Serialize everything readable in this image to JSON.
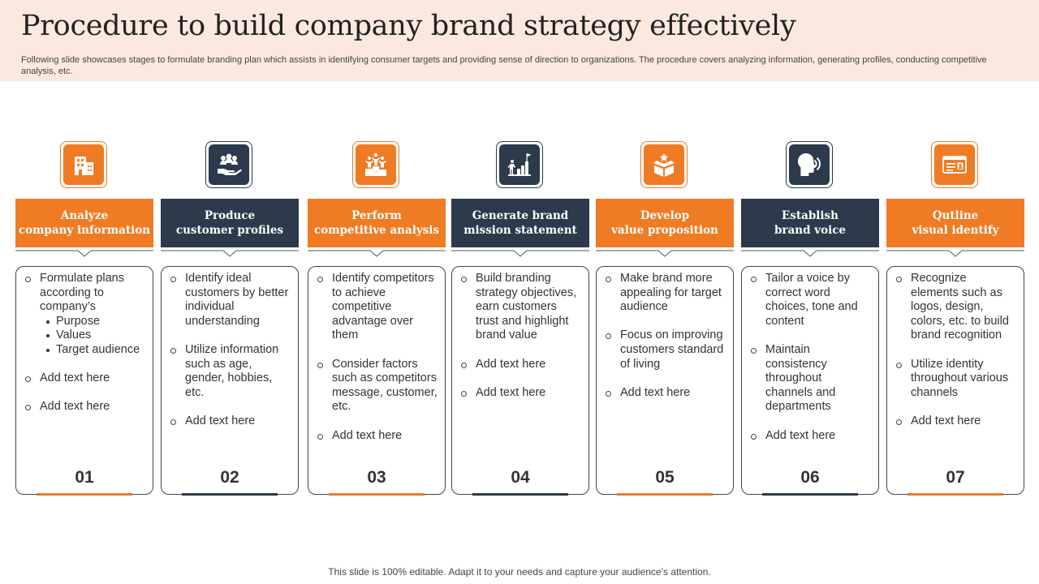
{
  "header": {
    "title": "Procedure to build company brand strategy effectively",
    "subtitle": "Following slide showcases stages to formulate branding plan which assists in identifying consumer targets and providing sense of direction to organizations. The procedure covers analyzing information, generating profiles, conducting competitive analysis, etc."
  },
  "colors": {
    "orange": "#ef7b25",
    "navy": "#2c3a4b"
  },
  "steps": [
    {
      "icon": "building-icon",
      "label": [
        "Analyze",
        "company information"
      ],
      "items": [
        {
          "text": "Formulate plans according to company’s",
          "sub": [
            "Purpose",
            "Values",
            "Target audience"
          ]
        },
        {
          "text": "Add text here"
        },
        {
          "text": "Add text here"
        }
      ],
      "number": "01"
    },
    {
      "icon": "people-hand-icon",
      "label": [
        "Produce",
        "customer profiles"
      ],
      "items": [
        {
          "text": "Identify ideal customers by better individual understanding"
        },
        {
          "text": "Utilize information such as age, gender, hobbies, etc."
        },
        {
          "text": "Add text here"
        }
      ],
      "number": "02"
    },
    {
      "icon": "podium-icon",
      "label": [
        "Perform",
        "competitive analysis"
      ],
      "items": [
        {
          "text": "Identify competitors to achieve competitive advantage over them"
        },
        {
          "text": "Consider factors such as competitors message, customer, etc."
        },
        {
          "text": "Add text here"
        }
      ],
      "number": "03"
    },
    {
      "icon": "growth-flag-icon",
      "label": [
        "Generate brand",
        "mission statement"
      ],
      "items": [
        {
          "text": "Build branding strategy objectives, earn customers trust and highlight brand value"
        },
        {
          "text": "Add text here"
        },
        {
          "text": "Add text here"
        }
      ],
      "number": "04"
    },
    {
      "icon": "box-star-icon",
      "label": [
        "Develop",
        "value proposition"
      ],
      "items": [
        {
          "text": "Make brand more appealing for target audience"
        },
        {
          "text": "Focus on improving customers standard of living"
        },
        {
          "text": "Add text here"
        }
      ],
      "number": "05"
    },
    {
      "icon": "speaking-head-icon",
      "label": [
        "Establish",
        "brand voice"
      ],
      "items": [
        {
          "text": "Tailor a voice by correct word choices, tone and content"
        },
        {
          "text": "Maintain consistency throughout channels and departments"
        },
        {
          "text": "Add text here"
        }
      ],
      "number": "06"
    },
    {
      "icon": "id-card-icon",
      "label": [
        "Qutline",
        "visual identify"
      ],
      "items": [
        {
          "text": "Recognize elements such as logos, design, colors, etc. to build brand recognition"
        },
        {
          "text": "Utilize identity throughout various channels"
        },
        {
          "text": "Add text here"
        }
      ],
      "number": "07"
    }
  ],
  "footer": "This slide is 100% editable. Adapt it to your needs and capture your audience’s attention."
}
